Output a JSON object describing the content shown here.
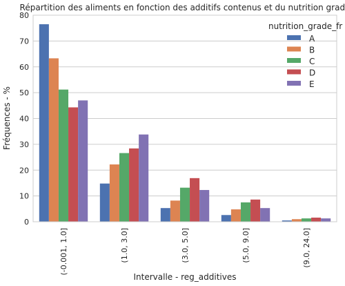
{
  "chart_data": {
    "type": "bar",
    "title": "Répartition des aliments en fonction des additifs contenus et du nutrition grade",
    "xlabel": "Intervalle - reg_additives",
    "ylabel": "Fréquences - %",
    "categories": [
      "(-0.001, 1.0]",
      "(1.0, 3.0]",
      "(3.0, 5.0]",
      "(5.0, 9.0]",
      "(9.0, 24.0]"
    ],
    "ylim": [
      0,
      80
    ],
    "yticks": [
      "0",
      "10",
      "20",
      "30",
      "40",
      "50",
      "60",
      "70",
      "80"
    ],
    "grid": true,
    "legend": {
      "title": "nutrition_grade_fr",
      "placement": "top-right"
    },
    "series": [
      {
        "name": "A",
        "color": "#4c72b0",
        "values": [
          76.5,
          14.8,
          5.3,
          2.6,
          0.5
        ]
      },
      {
        "name": "B",
        "color": "#dd8452",
        "values": [
          63.3,
          22.2,
          8.2,
          4.8,
          1.0
        ]
      },
      {
        "name": "C",
        "color": "#55a868",
        "values": [
          51.2,
          26.6,
          13.2,
          7.5,
          1.3
        ]
      },
      {
        "name": "D",
        "color": "#c44e52",
        "values": [
          44.3,
          28.4,
          16.9,
          8.6,
          1.6
        ]
      },
      {
        "name": "E",
        "color": "#8172b3",
        "values": [
          47.0,
          33.8,
          12.3,
          5.3,
          1.3
        ]
      }
    ]
  }
}
